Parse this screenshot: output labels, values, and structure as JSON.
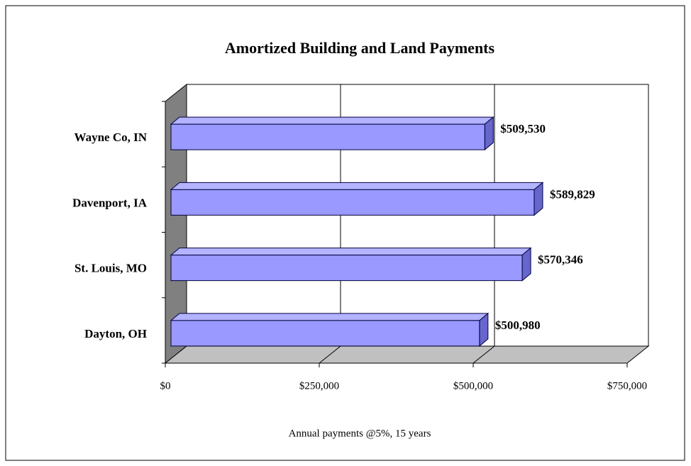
{
  "chart_data": {
    "type": "bar3d-horizontal",
    "title": "Amortized Building and Land Payments",
    "categories": [
      "Wayne Co, IN",
      "Davenport, IA",
      "St. Louis, MO",
      "Dayton, OH"
    ],
    "values": [
      509530,
      589829,
      570346,
      500980
    ],
    "value_labels": [
      "$509,530",
      "$589,829",
      "$570,346",
      "$500,980"
    ],
    "color": "#9999ff",
    "xlim": [
      0,
      750000
    ],
    "xticks": [
      {
        "value": 0,
        "label": "$0"
      },
      {
        "value": 250000,
        "label": "$250,000"
      },
      {
        "value": 500000,
        "label": "$500,000"
      },
      {
        "value": 750000,
        "label": "$750,000"
      }
    ],
    "xlabel": "Annual payments @5%, 15 years",
    "grid": true
  }
}
